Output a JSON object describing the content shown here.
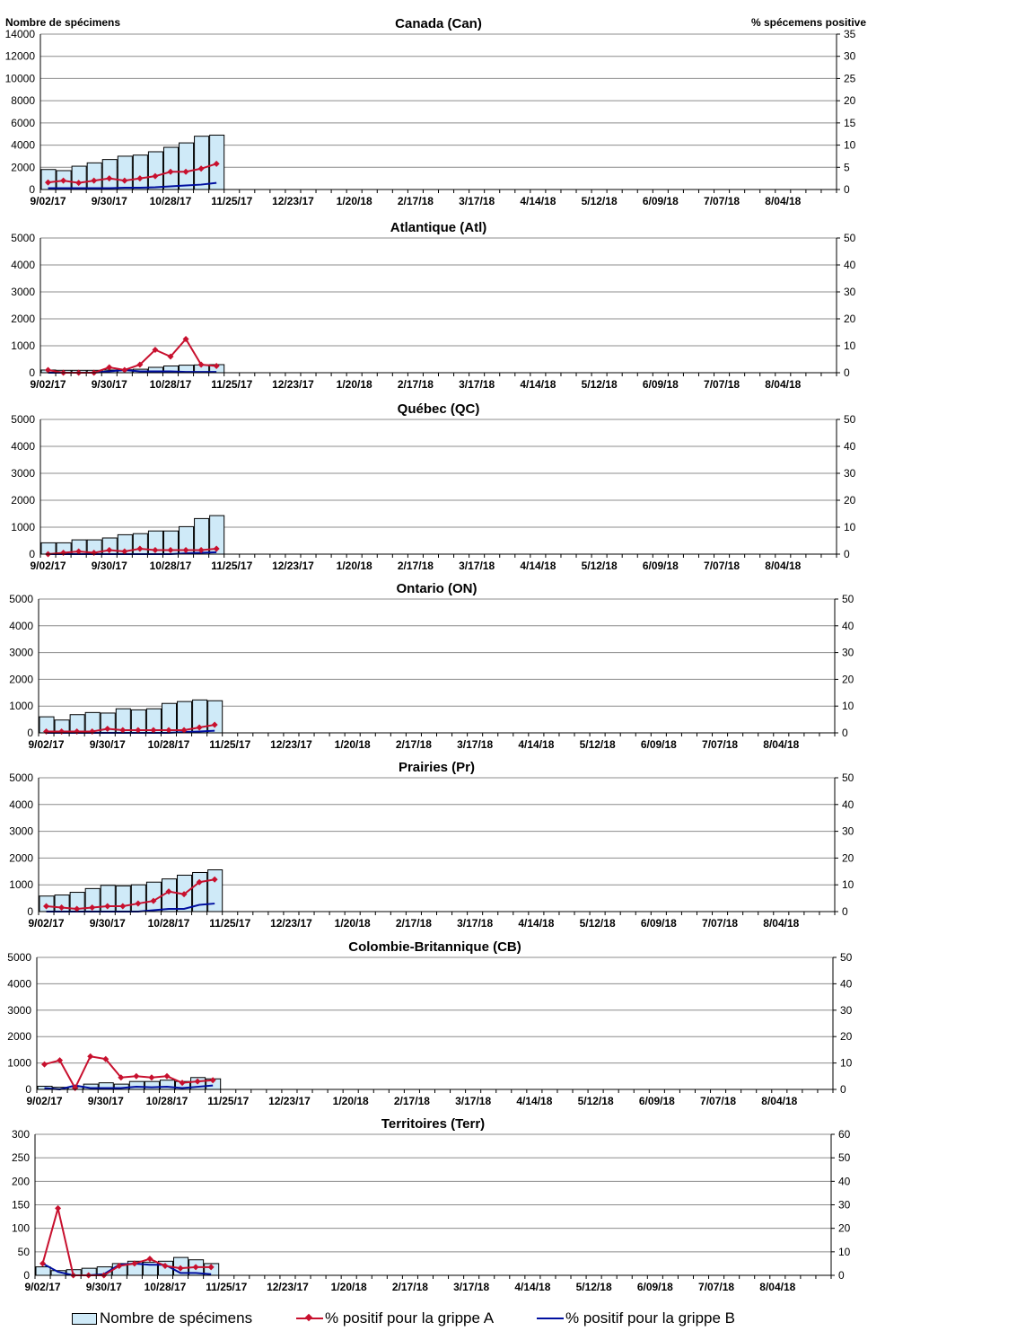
{
  "header": {
    "left_axis_title": "Nombre de spécimens",
    "right_axis_title": "% spécemens positive"
  },
  "x_ticks": [
    "9/02/17",
    "9/30/17",
    "10/28/17",
    "11/25/17",
    "12/23/17",
    "1/20/18",
    "2/17/18",
    "3/17/18",
    "4/14/18",
    "5/12/18",
    "6/09/18",
    "7/07/18",
    "8/04/18"
  ],
  "legend": {
    "bar": "Nombre de spécimens",
    "fluA": "% positif pour la grippe A",
    "fluB": "% positif pour la grippe B"
  },
  "colors": {
    "bar_fill": "#cfeaf8",
    "fluA": "#c8102e",
    "fluB": "#000fa0"
  },
  "chart_data": [
    {
      "type": "bar",
      "title": "Canada (Can)",
      "ylim_left": [
        0,
        14000
      ],
      "left_step": 2000,
      "ylim_right": [
        0,
        35
      ],
      "right_step": 5,
      "bars": [
        1800,
        1700,
        2100,
        2400,
        2700,
        3000,
        3100,
        3400,
        3800,
        4200,
        4800,
        4900
      ],
      "series": [
        {
          "name": "% positif pour la grippe A",
          "values": [
            1.6,
            2.0,
            1.5,
            2.0,
            2.5,
            2.0,
            2.5,
            3.0,
            4.0,
            4.0,
            4.7,
            5.8
          ]
        },
        {
          "name": "% positif pour la grippe B",
          "values": [
            0.3,
            0.3,
            0.3,
            0.3,
            0.3,
            0.4,
            0.4,
            0.5,
            0.7,
            0.9,
            1.1,
            1.5
          ]
        }
      ]
    },
    {
      "type": "bar",
      "title": "Atlantique (Atl)",
      "ylim_left": [
        0,
        5000
      ],
      "left_step": 1000,
      "ylim_right": [
        0,
        50
      ],
      "right_step": 10,
      "bars": [
        100,
        90,
        90,
        90,
        100,
        110,
        130,
        200,
        250,
        280,
        290,
        300
      ],
      "series": [
        {
          "name": "% positif pour la grippe A",
          "values": [
            1.0,
            0,
            0,
            0,
            2.0,
            1.0,
            3.0,
            8.5,
            6.0,
            12.5,
            3.0,
            2.5
          ]
        },
        {
          "name": "% positif pour la grippe B",
          "values": [
            0,
            0,
            0,
            0,
            0.5,
            1.0,
            0.5,
            0.5,
            0.5,
            0.3,
            0.3,
            0.3
          ]
        }
      ]
    },
    {
      "type": "bar",
      "title": "Québec (QC)",
      "ylim_left": [
        0,
        5000
      ],
      "left_step": 1000,
      "ylim_right": [
        0,
        50
      ],
      "right_step": 10,
      "bars": [
        420,
        420,
        530,
        530,
        600,
        720,
        760,
        860,
        860,
        1020,
        1320,
        1430
      ],
      "series": [
        {
          "name": "% positif pour la grippe A",
          "values": [
            0,
            0.5,
            1.0,
            0.5,
            1.5,
            1.0,
            2.0,
            1.5,
            1.5,
            1.5,
            1.5,
            2.0
          ]
        },
        {
          "name": "% positif pour la grippe B",
          "values": [
            0,
            0,
            0,
            0,
            0,
            0,
            0,
            0,
            0,
            0.3,
            0.5,
            0.7
          ]
        }
      ]
    },
    {
      "type": "bar",
      "title": "Ontario (ON)",
      "ylim_left": [
        0,
        5000
      ],
      "left_step": 1000,
      "ylim_right": [
        0,
        50
      ],
      "right_step": 10,
      "bars": [
        600,
        480,
        680,
        760,
        740,
        900,
        860,
        900,
        1100,
        1170,
        1230,
        1200
      ],
      "series": [
        {
          "name": "% positif pour la grippe A",
          "values": [
            0.5,
            0.5,
            0.5,
            0.5,
            1.5,
            1.0,
            1.0,
            1.0,
            1.0,
            1.0,
            2.0,
            3.0
          ]
        },
        {
          "name": "% positif pour la grippe B",
          "values": [
            0,
            0,
            0,
            0,
            0,
            0,
            0,
            0,
            0,
            0.3,
            0.5,
            0.8
          ]
        }
      ]
    },
    {
      "type": "bar",
      "title": "Prairies (Pr)",
      "ylim_left": [
        0,
        5000
      ],
      "left_step": 1000,
      "ylim_right": [
        0,
        50
      ],
      "right_step": 10,
      "bars": [
        580,
        620,
        720,
        860,
        980,
        960,
        1000,
        1100,
        1220,
        1360,
        1460,
        1560
      ],
      "series": [
        {
          "name": "% positif pour la grippe A",
          "values": [
            2.0,
            1.5,
            1.0,
            1.5,
            2.0,
            2.0,
            3.0,
            4.0,
            7.5,
            6.5,
            11.0,
            12.0
          ]
        },
        {
          "name": "% positif pour la grippe B",
          "values": [
            0,
            0,
            0,
            0,
            0,
            0,
            0,
            0.5,
            1.0,
            1.0,
            2.5,
            3.0
          ]
        }
      ]
    },
    {
      "type": "bar",
      "title": "Colombie-Britannique (CB)",
      "ylim_left": [
        0,
        5000
      ],
      "left_step": 1000,
      "ylim_right": [
        0,
        50
      ],
      "right_step": 10,
      "bars": [
        120,
        80,
        100,
        200,
        250,
        200,
        300,
        300,
        350,
        300,
        450,
        400
      ],
      "series": [
        {
          "name": "% positif pour la grippe A",
          "values": [
            9.5,
            11.0,
            0.5,
            12.5,
            11.5,
            4.5,
            5.0,
            4.5,
            5.0,
            2.5,
            3.0,
            3.5
          ]
        },
        {
          "name": "% positif pour la grippe B",
          "values": [
            0.5,
            0,
            1.5,
            0.5,
            0.5,
            0.5,
            1.0,
            0.8,
            1.0,
            0.5,
            1.0,
            1.5
          ]
        }
      ]
    },
    {
      "type": "bar",
      "title": "Territoires (Terr)",
      "ylim_left": [
        0,
        300
      ],
      "left_step": 50,
      "ylim_right": [
        0,
        60
      ],
      "right_step": 10,
      "bars": [
        18,
        10,
        12,
        15,
        18,
        25,
        30,
        28,
        30,
        38,
        33,
        25
      ],
      "series": [
        {
          "name": "% positif pour la grippe A",
          "values": [
            5.0,
            28.5,
            0,
            0,
            0,
            4.0,
            5.0,
            7.0,
            4.0,
            3.0,
            3.5,
            3.5
          ]
        },
        {
          "name": "% positif pour la grippe B",
          "values": [
            5.0,
            1.5,
            0,
            0,
            0.5,
            4.5,
            5.0,
            4.5,
            4.5,
            1.0,
            1.0,
            0.5
          ]
        }
      ]
    }
  ]
}
